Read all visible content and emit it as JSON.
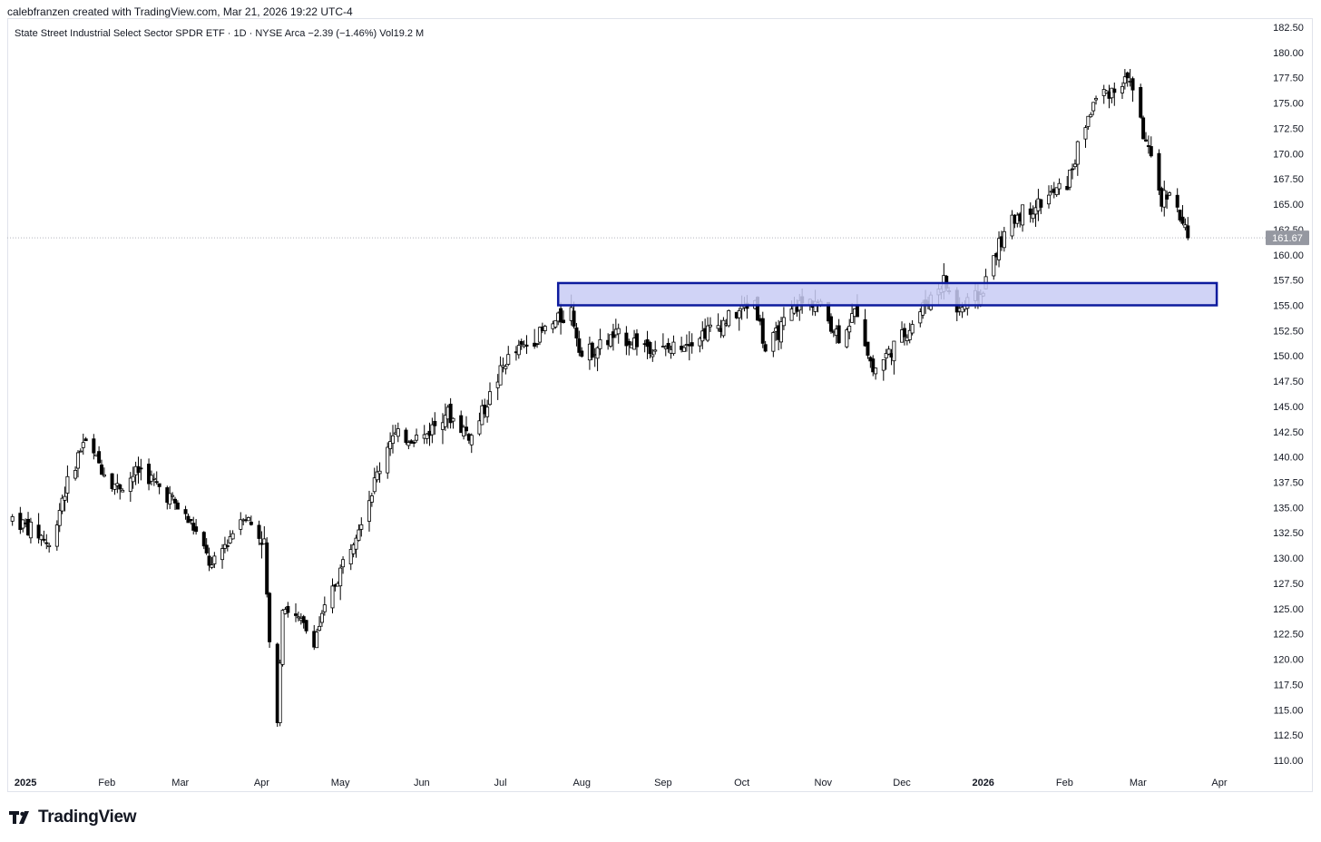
{
  "header": {
    "attribution": "calebfranzen created with TradingView.com, Mar 21, 2026 19:22 UTC-4"
  },
  "legend": {
    "text": "State Street Industrial Select Sector SPDR ETF · 1D · NYSE Arca  −2.39 (−1.46%)  Vol19.2 M"
  },
  "footer": {
    "brand": "TradingView"
  },
  "colors": {
    "up": "#ffffff",
    "down": "#000000",
    "wick": "#000000",
    "zone_fill": "#c8cbf5",
    "zone_border": "#0d1b9e",
    "last_price_bg": "#9598a1"
  },
  "chart_data": {
    "type": "candlestick",
    "y_axis": {
      "position": "right",
      "range": [
        108.5,
        183.5
      ],
      "ticks": [
        "182.50",
        "180.00",
        "177.50",
        "175.00",
        "172.50",
        "170.00",
        "167.50",
        "165.00",
        "162.50",
        "160.00",
        "157.50",
        "155.00",
        "152.50",
        "150.00",
        "147.50",
        "145.00",
        "142.50",
        "140.00",
        "137.50",
        "135.00",
        "132.50",
        "130.00",
        "127.50",
        "125.00",
        "122.50",
        "120.00",
        "117.50",
        "115.00",
        "112.50",
        "110.00"
      ]
    },
    "x_axis": {
      "labels": [
        {
          "text": "2025",
          "bold": true,
          "date": "2025-01-01"
        },
        {
          "text": "Feb",
          "date": "2025-02-01"
        },
        {
          "text": "Mar",
          "date": "2025-03-01"
        },
        {
          "text": "Apr",
          "date": "2025-04-01"
        },
        {
          "text": "May",
          "date": "2025-05-01"
        },
        {
          "text": "Jun",
          "date": "2025-06-01"
        },
        {
          "text": "Jul",
          "date": "2025-07-01"
        },
        {
          "text": "Aug",
          "date": "2025-08-01"
        },
        {
          "text": "Sep",
          "date": "2025-09-01"
        },
        {
          "text": "Oct",
          "date": "2025-10-01"
        },
        {
          "text": "Nov",
          "date": "2025-11-01"
        },
        {
          "text": "Dec",
          "date": "2025-12-01"
        },
        {
          "text": "2026",
          "bold": true,
          "date": "2026-01-01"
        },
        {
          "text": "Feb",
          "date": "2026-02-01"
        },
        {
          "text": "Mar",
          "date": "2026-03-01"
        },
        {
          "text": "Apr",
          "date": "2026-04-01"
        }
      ]
    },
    "last_price": {
      "label": "161.67",
      "value": 161.67
    },
    "zone": {
      "from": "2025-07-23",
      "to": "2026-03-31",
      "low": 155.0,
      "high": 157.2
    },
    "series_approx": [
      {
        "date": "2024-12-27",
        "close": 134.0
      },
      {
        "date": "2025-01-08",
        "close": 132.0
      },
      {
        "date": "2025-01-10",
        "close": 131.0
      },
      {
        "date": "2025-01-15",
        "close": 136.0
      },
      {
        "date": "2025-01-23",
        "close": 141.5
      },
      {
        "date": "2025-01-30",
        "close": 139.0
      },
      {
        "date": "2025-02-05",
        "close": 137.0
      },
      {
        "date": "2025-02-14",
        "close": 138.8
      },
      {
        "date": "2025-02-25",
        "close": 136.0
      },
      {
        "date": "2025-03-06",
        "close": 133.0
      },
      {
        "date": "2025-03-13",
        "close": 129.0
      },
      {
        "date": "2025-03-25",
        "close": 134.5
      },
      {
        "date": "2025-04-02",
        "close": 131.5
      },
      {
        "date": "2025-04-04",
        "close": 121.0
      },
      {
        "date": "2025-04-07",
        "close": 114.5
      },
      {
        "date": "2025-04-09",
        "close": 125.5
      },
      {
        "date": "2025-04-21",
        "close": 122.0
      },
      {
        "date": "2025-05-02",
        "close": 129.5
      },
      {
        "date": "2025-05-12",
        "close": 136.0
      },
      {
        "date": "2025-05-20",
        "close": 142.0
      },
      {
        "date": "2025-06-02",
        "close": 142.0
      },
      {
        "date": "2025-06-10",
        "close": 144.5
      },
      {
        "date": "2025-06-20",
        "close": 142.0
      },
      {
        "date": "2025-07-03",
        "close": 149.5
      },
      {
        "date": "2025-07-18",
        "close": 152.5
      },
      {
        "date": "2025-07-28",
        "close": 154.5
      },
      {
        "date": "2025-08-01",
        "close": 150.0
      },
      {
        "date": "2025-08-14",
        "close": 152.0
      },
      {
        "date": "2025-09-02",
        "close": 150.5
      },
      {
        "date": "2025-09-22",
        "close": 153.0
      },
      {
        "date": "2025-10-06",
        "close": 155.5
      },
      {
        "date": "2025-10-10",
        "close": 150.5
      },
      {
        "date": "2025-10-22",
        "close": 155.0
      },
      {
        "date": "2025-10-29",
        "close": 155.5
      },
      {
        "date": "2025-11-07",
        "close": 152.0
      },
      {
        "date": "2025-11-14",
        "close": 154.5
      },
      {
        "date": "2025-11-20",
        "close": 148.5
      },
      {
        "date": "2025-12-03",
        "close": 152.5
      },
      {
        "date": "2025-12-11",
        "close": 155.5
      },
      {
        "date": "2025-12-17",
        "close": 157.5
      },
      {
        "date": "2025-12-22",
        "close": 154.5
      },
      {
        "date": "2025-12-31",
        "close": 156.0
      },
      {
        "date": "2026-01-06",
        "close": 160.5
      },
      {
        "date": "2026-01-14",
        "close": 164.0
      },
      {
        "date": "2026-01-22",
        "close": 165.0
      },
      {
        "date": "2026-02-02",
        "close": 167.0
      },
      {
        "date": "2026-02-09",
        "close": 173.0
      },
      {
        "date": "2026-02-13",
        "close": 175.5
      },
      {
        "date": "2026-02-20",
        "close": 176.5
      },
      {
        "date": "2026-02-26",
        "close": 177.5
      },
      {
        "date": "2026-03-03",
        "close": 172.0
      },
      {
        "date": "2026-03-06",
        "close": 169.0
      },
      {
        "date": "2026-03-10",
        "close": 165.5
      },
      {
        "date": "2026-03-13",
        "close": 166.5
      },
      {
        "date": "2026-03-17",
        "close": 163.5
      },
      {
        "date": "2026-03-20",
        "close": 161.67
      }
    ]
  }
}
